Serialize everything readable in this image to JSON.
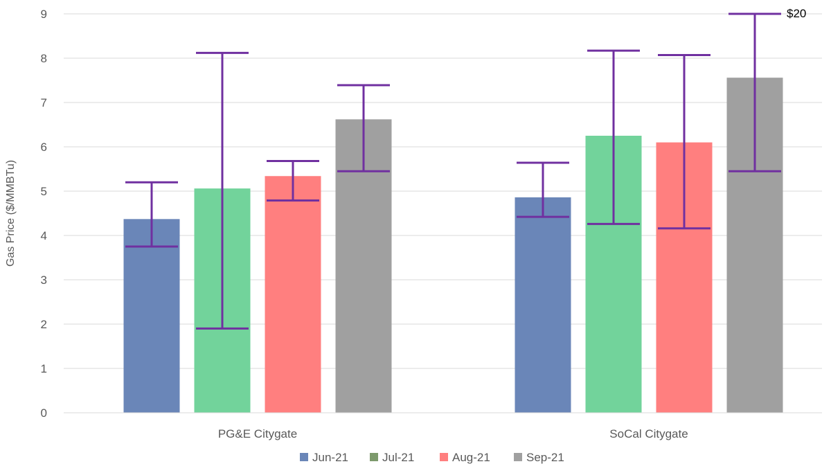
{
  "chart_data": {
    "type": "bar",
    "title": "",
    "xlabel": "",
    "ylabel": "Gas Price ($/MMBTu)",
    "ylim": [
      0,
      9
    ],
    "yticks": [
      0,
      1,
      2,
      3,
      4,
      5,
      6,
      7,
      8,
      9
    ],
    "grid": true,
    "legend_position": "bottom",
    "categories": [
      "PG&E Citygate",
      "SoCal Citygate"
    ],
    "series": [
      {
        "name": "Jun-21",
        "color": "#6a86b8",
        "values": [
          4.37,
          4.86
        ],
        "error_low": [
          3.75,
          4.42
        ],
        "error_high": [
          5.2,
          5.64
        ]
      },
      {
        "name": "Jul-21",
        "color": "#72d39b",
        "legend_color": "#7d9a6c",
        "values": [
          5.06,
          6.25
        ],
        "error_low": [
          1.9,
          4.26
        ],
        "error_high": [
          8.12,
          8.17
        ]
      },
      {
        "name": "Aug-21",
        "color": "#ff7f7f",
        "values": [
          5.34,
          6.1
        ],
        "error_low": [
          4.79,
          4.16
        ],
        "error_high": [
          5.68,
          8.07
        ]
      },
      {
        "name": "Sep-21",
        "color": "#a0a0a0",
        "values": [
          6.62,
          7.56
        ],
        "error_low": [
          5.45,
          5.45
        ],
        "error_high": [
          7.39,
          9.0
        ]
      }
    ],
    "error_bar_color": "#7030a0",
    "annotations": [
      {
        "text": "$20",
        "series": "Sep-21",
        "category": "SoCal Citygate"
      }
    ]
  }
}
